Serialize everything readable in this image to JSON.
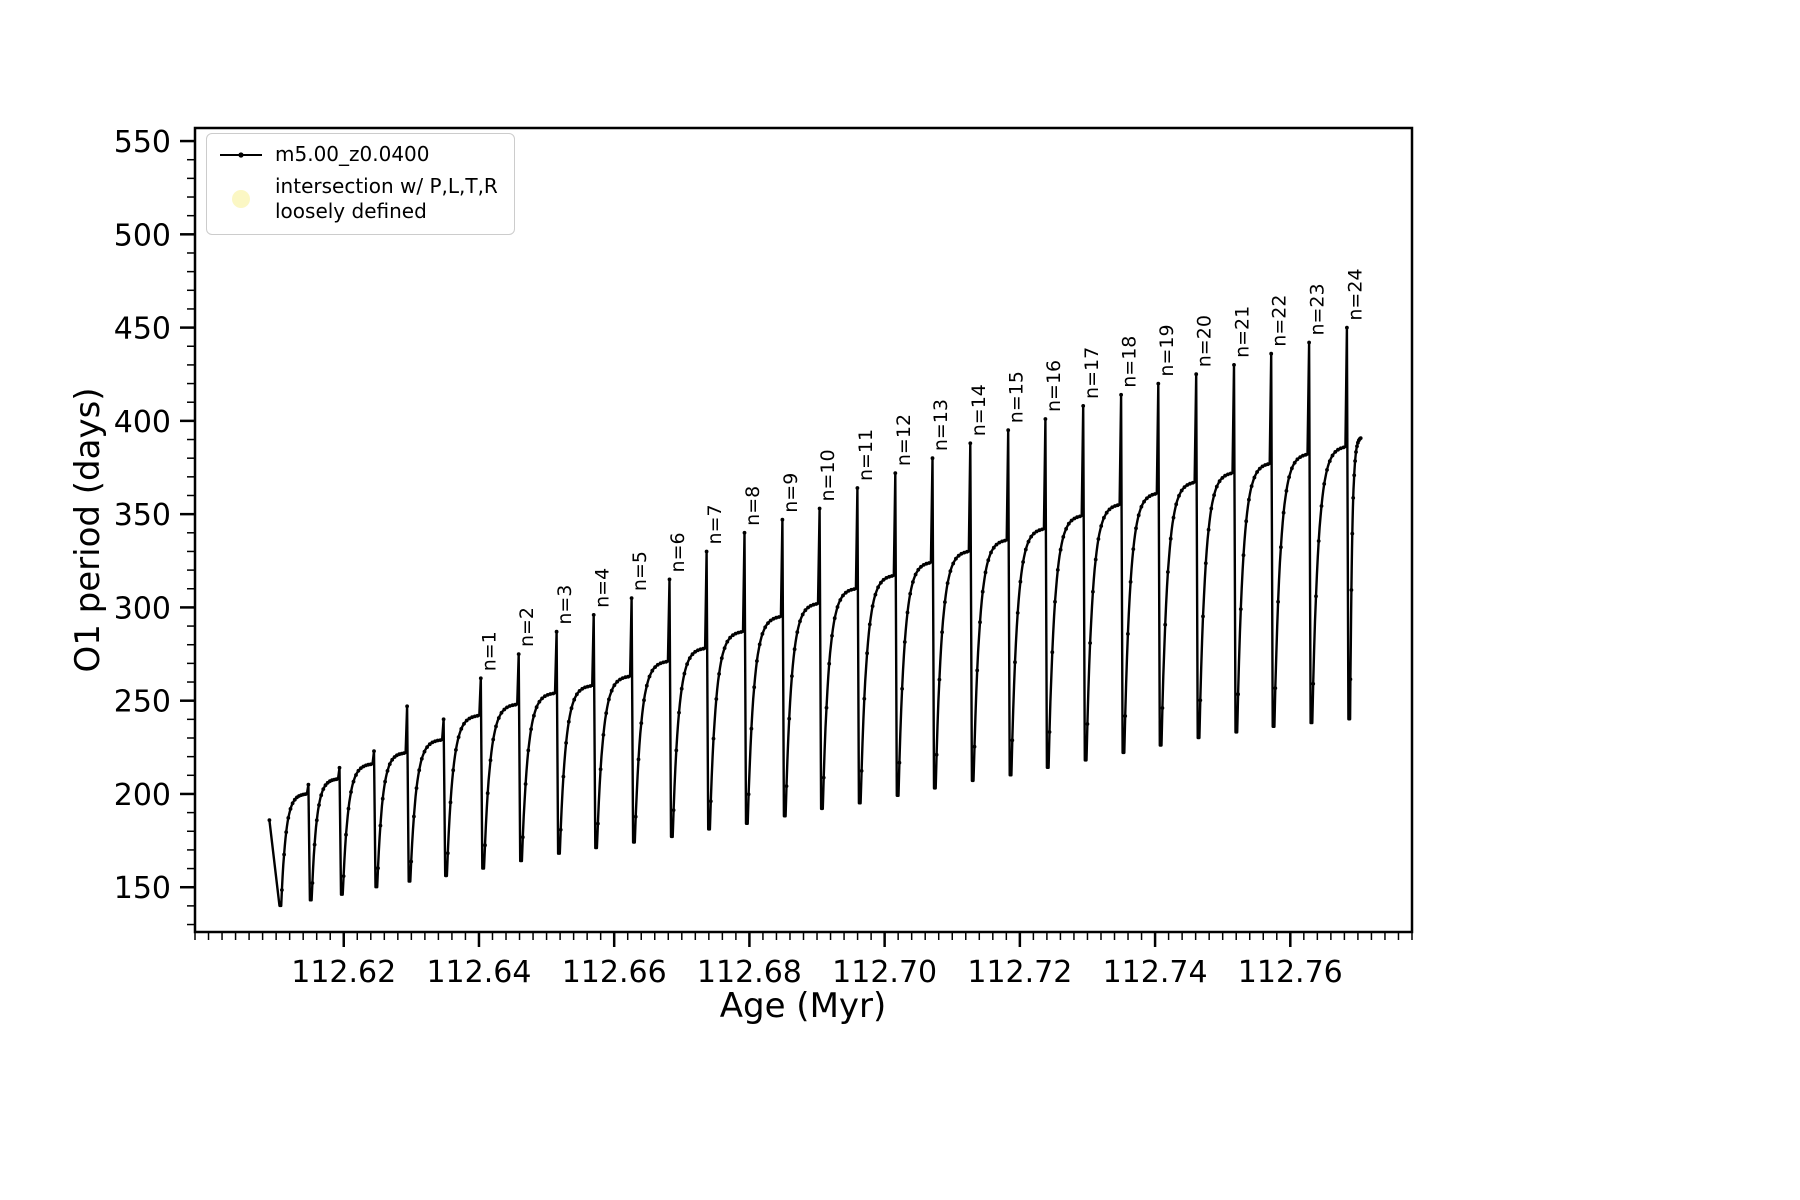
{
  "chart_data": {
    "type": "line",
    "title": "",
    "xlabel": "Age (Myr)",
    "ylabel": "O1 period (days)",
    "xlim": [
      112.598,
      112.778
    ],
    "ylim": [
      126,
      557
    ],
    "x_major_ticks": [
      112.62,
      112.64,
      112.66,
      112.68,
      112.7,
      112.72,
      112.74,
      112.76
    ],
    "x_minor_step": 0.002,
    "y_major_ticks": [
      150,
      200,
      250,
      300,
      350,
      400,
      450,
      500,
      550
    ],
    "y_minor_step": 10,
    "grid": false,
    "legend_position": "upper left",
    "line_color": "#000000",
    "legend": {
      "series_label": "m5.00_z0.0400",
      "intersection_label_line1": "intersection w/ P,L,T,R",
      "intersection_label_line2": "loosely defined",
      "intersection_marker_color": "#fbf7c4"
    },
    "series_start": {
      "x": 112.609,
      "y": 186
    },
    "series_end": {
      "x": 112.7705,
      "y": 391
    },
    "cycles": [
      {
        "x": 112.6105,
        "top": 186,
        "spike": null,
        "min": 140,
        "label": null
      },
      {
        "x": 112.615,
        "top": 200,
        "spike": 205,
        "min": 143,
        "label": null
      },
      {
        "x": 112.6196,
        "top": 208,
        "spike": 214,
        "min": 146,
        "label": null
      },
      {
        "x": 112.6247,
        "top": 216,
        "spike": 223,
        "min": 150,
        "label": null
      },
      {
        "x": 112.6296,
        "top": 222,
        "spike": 247,
        "min": 153,
        "label": null
      },
      {
        "x": 112.635,
        "top": 229,
        "spike": 240,
        "min": 156,
        "label": null
      },
      {
        "x": 112.6405,
        "top": 242,
        "spike": 262,
        "min": 160,
        "label": "n=1"
      },
      {
        "x": 112.6461,
        "top": 248,
        "spike": 275,
        "min": 164,
        "label": "n=2"
      },
      {
        "x": 112.6517,
        "top": 254,
        "spike": 287,
        "min": 168,
        "label": "n=3"
      },
      {
        "x": 112.6572,
        "top": 258,
        "spike": 296,
        "min": 171,
        "label": "n=4"
      },
      {
        "x": 112.6628,
        "top": 263,
        "spike": 305,
        "min": 174,
        "label": "n=5"
      },
      {
        "x": 112.6684,
        "top": 271,
        "spike": 315,
        "min": 177,
        "label": "n=6"
      },
      {
        "x": 112.6739,
        "top": 278,
        "spike": 330,
        "min": 181,
        "label": "n=7"
      },
      {
        "x": 112.6795,
        "top": 287,
        "spike": 340,
        "min": 184,
        "label": "n=8"
      },
      {
        "x": 112.6851,
        "top": 295,
        "spike": 347,
        "min": 188,
        "label": "n=9"
      },
      {
        "x": 112.6906,
        "top": 302,
        "spike": 353,
        "min": 192,
        "label": "n=10"
      },
      {
        "x": 112.6962,
        "top": 310,
        "spike": 364,
        "min": 195,
        "label": "n=11"
      },
      {
        "x": 112.7018,
        "top": 317,
        "spike": 372,
        "min": 199,
        "label": "n=12"
      },
      {
        "x": 112.7073,
        "top": 324,
        "spike": 380,
        "min": 203,
        "label": "n=13"
      },
      {
        "x": 112.7129,
        "top": 330,
        "spike": 388,
        "min": 207,
        "label": "n=14"
      },
      {
        "x": 112.7185,
        "top": 336,
        "spike": 395,
        "min": 210,
        "label": "n=15"
      },
      {
        "x": 112.724,
        "top": 342,
        "spike": 401,
        "min": 214,
        "label": "n=16"
      },
      {
        "x": 112.7296,
        "top": 349,
        "spike": 408,
        "min": 218,
        "label": "n=17"
      },
      {
        "x": 112.7352,
        "top": 355,
        "spike": 414,
        "min": 222,
        "label": "n=18"
      },
      {
        "x": 112.7407,
        "top": 361,
        "spike": 420,
        "min": 226,
        "label": "n=19"
      },
      {
        "x": 112.7463,
        "top": 367,
        "spike": 425,
        "min": 230,
        "label": "n=20"
      },
      {
        "x": 112.7519,
        "top": 372,
        "spike": 430,
        "min": 233,
        "label": "n=21"
      },
      {
        "x": 112.7574,
        "top": 377,
        "spike": 436,
        "min": 236,
        "label": "n=22"
      },
      {
        "x": 112.763,
        "top": 382,
        "spike": 442,
        "min": 238,
        "label": "n=23"
      },
      {
        "x": 112.7686,
        "top": 386,
        "spike": 450,
        "min": 240,
        "label": "n=24"
      }
    ]
  }
}
